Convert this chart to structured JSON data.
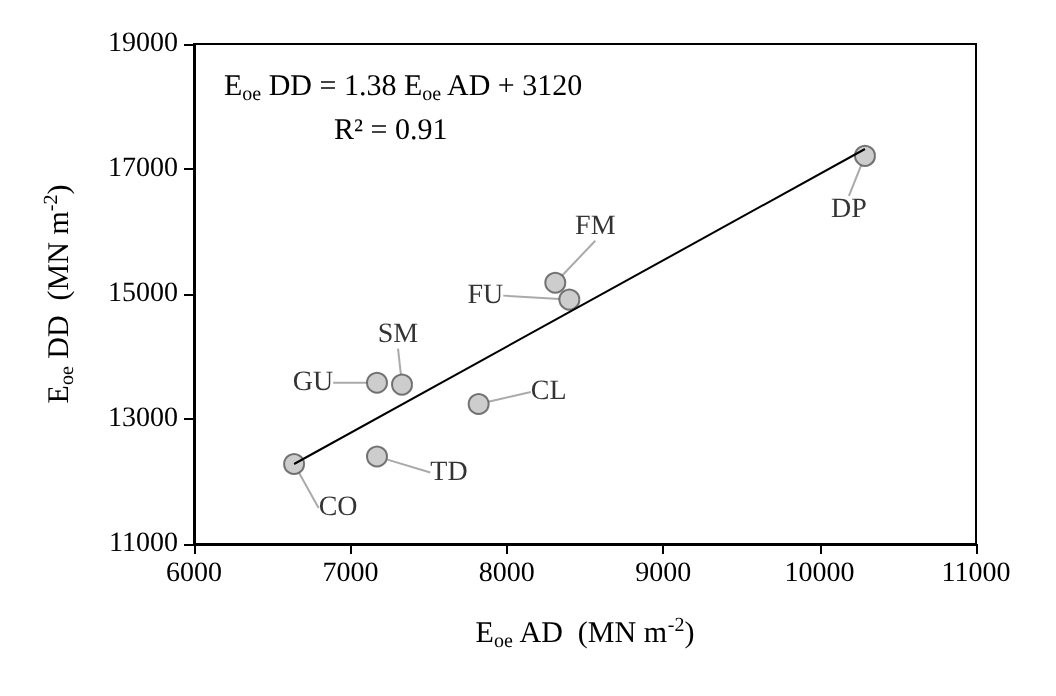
{
  "chart_data": {
    "type": "scatter",
    "xlabel": "E$_{oe}$ AD  (MN m$^{-2}$)",
    "ylabel": "E$_{oe}$ DD  (MN m$^{-2}$)",
    "series": [
      {
        "color": "#c0c0c0",
        "x": [
          6640,
          7170,
          7170,
          7330,
          7820,
          8310,
          8400,
          10290
        ],
        "values": [
          12280,
          12400,
          13580,
          13550,
          13240,
          15180,
          14910,
          17210
        ]
      },
      {
        "type": "line",
        "color": "#000000",
        "marker": "none",
        "x": [
          6640,
          10290
        ],
        "values": [
          12280,
          17320
        ]
      }
    ],
    "annotations": [
      "E$_{oe}$ DD = 1.38 E$_{oe}$ AD + 3120",
      "R² = 0.91",
      {
        "text": "CO",
        "x": 6640,
        "y": 12280
      },
      {
        "text": "TD",
        "x": 7170,
        "y": 12400
      },
      {
        "text": "GU",
        "x": 7170,
        "y": 13580
      },
      {
        "text": "SM",
        "x": 7330,
        "y": 13550
      },
      {
        "text": "CL",
        "x": 7820,
        "y": 13240
      },
      {
        "text": "FM",
        "x": 8310,
        "y": 15180
      },
      {
        "text": "FU",
        "x": 8400,
        "y": 14910
      },
      {
        "text": "DP",
        "x": 10290,
        "y": 17210
      }
    ],
    "xlim": [
      6000,
      11000
    ],
    "xticks": [
      6000,
      7000,
      8000,
      9000,
      10000,
      11000
    ],
    "ylim": [
      11000,
      19000
    ],
    "yticks": [
      11000,
      13000,
      15000,
      17000,
      19000
    ],
    "marker": "circle",
    "grid": false
  }
}
